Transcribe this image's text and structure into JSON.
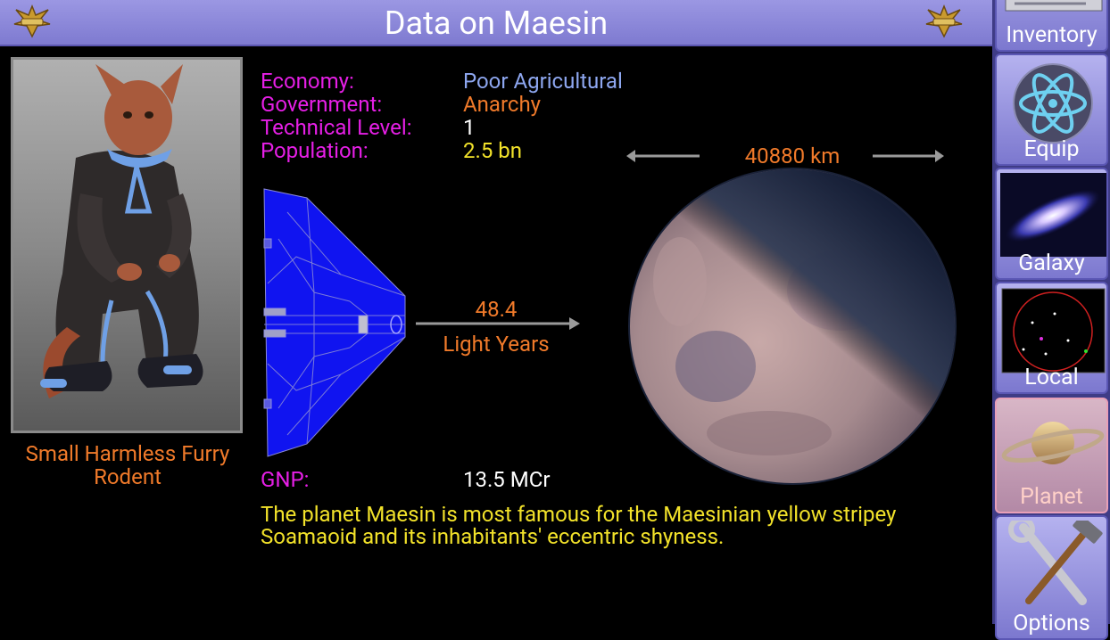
{
  "header": {
    "title": "Data on Maesin"
  },
  "inhabitants": {
    "description": "Small Harmless Furry Rodent"
  },
  "stats": {
    "economy_label": "Economy:",
    "economy_value": "Poor Agricultural",
    "government_label": "Government:",
    "government_value": "Anarchy",
    "tech_label": "Technical Level:",
    "tech_value": "1",
    "population_label": "Population:",
    "population_value": "2.5 bn",
    "gnp_label": "GNP:",
    "gnp_value": "13.5 MCr"
  },
  "distance": {
    "value": "48.4",
    "unit": "Light Years"
  },
  "planet": {
    "diameter": "40880 km"
  },
  "description": "The planet Maesin is most famous for the Maesinian yellow stripey Soamaoid and its inhabitants' eccentric shyness.",
  "nav": {
    "items": [
      {
        "label": "Inventory",
        "icon": "inventory-icon"
      },
      {
        "label": "Equip",
        "icon": "atom-icon"
      },
      {
        "label": "Galaxy",
        "icon": "galaxy-icon"
      },
      {
        "label": "Local",
        "icon": "local-chart-icon"
      },
      {
        "label": "Planet",
        "icon": "planet-icon",
        "active": true
      },
      {
        "label": "Options",
        "icon": "wrench-hammer-icon"
      }
    ]
  },
  "colors": {
    "label": "#e61fe6",
    "accent": "#f07a2a",
    "economy": "#8ea7f0",
    "population": "#f2e22a",
    "header": "#8a86da"
  }
}
